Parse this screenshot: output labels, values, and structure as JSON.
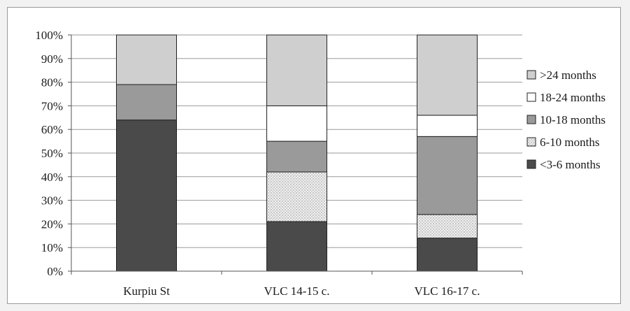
{
  "chart_data": {
    "type": "bar",
    "stacked": true,
    "title": "",
    "xlabel": "",
    "ylabel": "",
    "categories": [
      "Kurpiu St",
      "VLC 14-15 c.",
      "VLC 16-17 c."
    ],
    "ylim": [
      0,
      100
    ],
    "yticks": [
      "0%",
      "10%",
      "20%",
      "30%",
      "40%",
      "50%",
      "60%",
      "70%",
      "80%",
      "90%",
      "100%"
    ],
    "grid": true,
    "legend_position": "right",
    "series": [
      {
        "name": "<3-6 months",
        "values": [
          64,
          21,
          14
        ],
        "color": "#4a4a4a",
        "pattern": "solid"
      },
      {
        "name": "6-10 months",
        "values": [
          0,
          21,
          10
        ],
        "color": "#e6e6e6",
        "pattern": "dotted"
      },
      {
        "name": "10-18 months",
        "values": [
          15,
          13,
          33
        ],
        "color": "#9a9a9a",
        "pattern": "solid"
      },
      {
        "name": "18-24 months",
        "values": [
          0,
          15,
          9
        ],
        "color": "#ffffff",
        "pattern": "solid"
      },
      {
        "name": ">24 months",
        "values": [
          21,
          30,
          34
        ],
        "color": "#cfcfcf",
        "pattern": "solid"
      }
    ]
  }
}
